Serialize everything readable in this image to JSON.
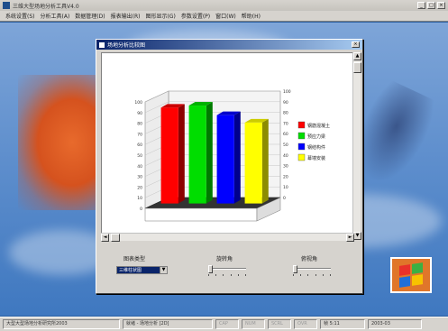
{
  "app": {
    "title": "三维大型场地分析工具V4.0",
    "menu": [
      "系统设置(S)",
      "分析工具(A)",
      "数据管理(D)",
      "报表输出(R)",
      "图形显示(G)",
      "参数设置(P)",
      "窗口(W)",
      "帮助(H)"
    ]
  },
  "dialog": {
    "title": "场地分析比较图",
    "close_label": "×"
  },
  "chart_data": {
    "type": "bar",
    "categories": [
      "钢筋混凝土",
      "预应力梁",
      "钢结构件",
      "幕墙安装"
    ],
    "values": [
      90,
      92,
      83,
      76
    ],
    "ylim": [
      0,
      100
    ],
    "yticks": [
      "0",
      "10",
      "20",
      "30",
      "40",
      "50",
      "60",
      "70",
      "80",
      "90",
      "100"
    ],
    "grid": true,
    "legend_position": "right",
    "colors": [
      "#ff0000",
      "#00dd00",
      "#0000ff",
      "#ffff00"
    ],
    "three_d": true
  },
  "controls": {
    "chart_type_label": "图表类型",
    "chart_type_value": "三维柱状图",
    "rotation_label": "旋转角",
    "elevation_label": "俯视角"
  },
  "status": {
    "cells": [
      "大型大型场地分析研究所2003",
      "就绪 - 场地分析 [2D]",
      "CAP",
      "NUM",
      "SCRL",
      "OVR",
      "帧 5:11",
      "2003-03"
    ]
  },
  "colors": {
    "desktop_top": "#7ea5d8",
    "dialog_title_start": "#0a246a",
    "chrome": "#d6d3ce"
  }
}
